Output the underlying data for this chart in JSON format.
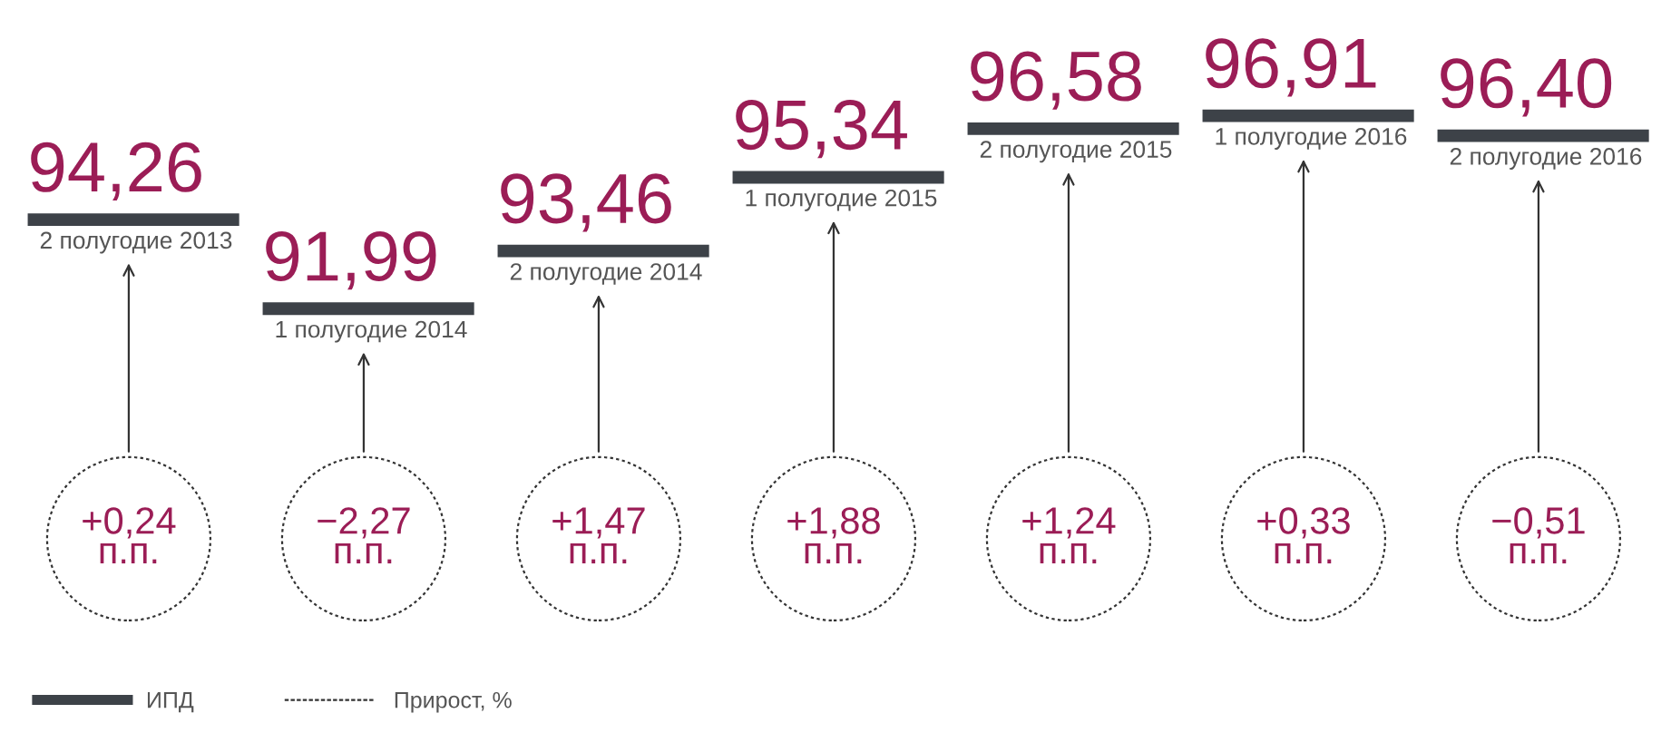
{
  "chart_data": {
    "type": "other",
    "categories": [
      "2 полугодие 2013",
      "1 полугодие 2014",
      "2 полугодие 2014",
      "1 полугодие 2015",
      "2 полугодие 2015",
      "1 полугодие 2016",
      "2 полугодие 2016"
    ],
    "series": [
      {
        "name": "ИПД",
        "color": "#3d4248",
        "values": [
          94.26,
          91.99,
          93.46,
          95.34,
          96.58,
          96.91,
          96.4
        ],
        "value_labels": [
          "94,26",
          "91,99",
          "93,46",
          "95,34",
          "96,58",
          "96,91",
          "96,40"
        ]
      },
      {
        "name": "Прирост, %",
        "color": "#333333",
        "values": [
          0.24,
          -2.27,
          1.47,
          1.88,
          1.24,
          0.33,
          -0.51
        ],
        "value_labels": [
          "+0,24\nп.п.",
          "−2,27\nп.п.",
          "+1,47\nп.п.",
          "+1,88\nп.п.",
          "+1,24\nп.п.",
          "+0,33\nп.п.",
          "−0,51\nп.п."
        ]
      }
    ],
    "legend": "bottom left"
  }
}
